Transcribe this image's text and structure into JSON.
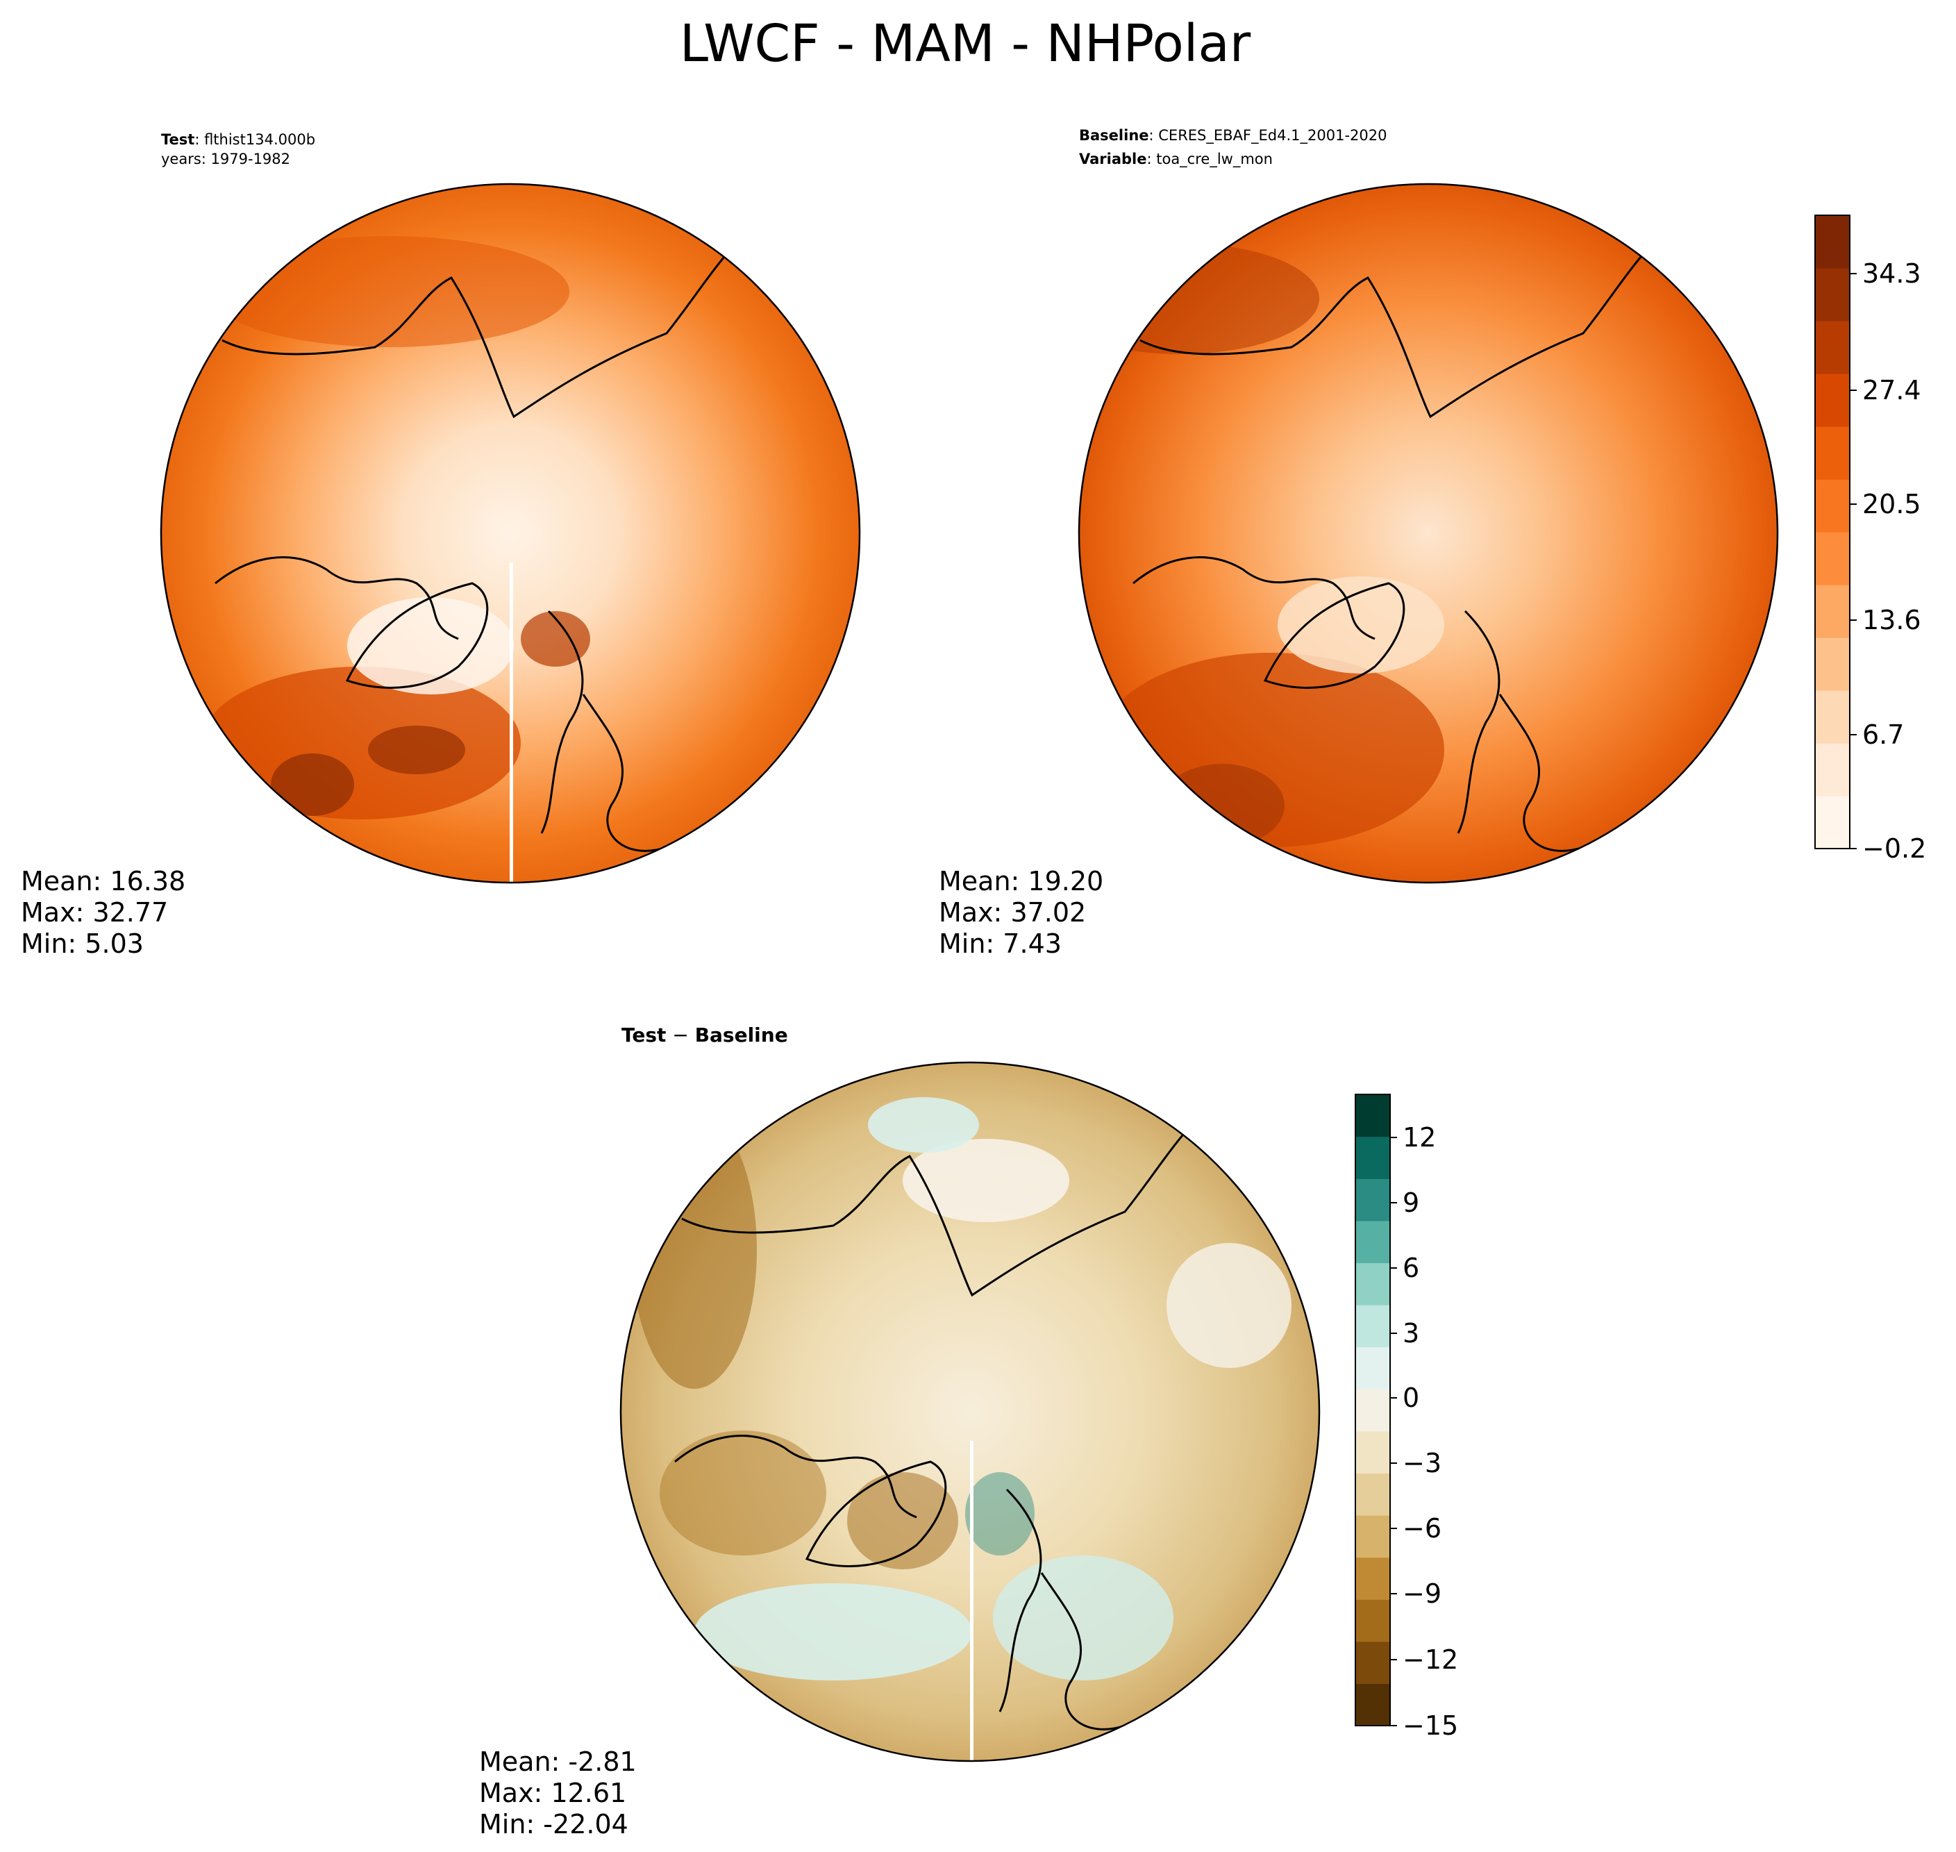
{
  "figure": {
    "title": "LWCF - MAM - NHPolar"
  },
  "panels": {
    "test": {
      "header_line1_bold": "Test",
      "header_line1_rest": ": flthist134.000b",
      "header_line2": "years: 1979-1982",
      "mean": "Mean: 16.38",
      "max": "Max: 32.77",
      "min": "Min:  5.03"
    },
    "baseline": {
      "header_line1_bold": "Baseline",
      "header_line1_rest": ": CERES_EBAF_Ed4.1_2001-2020",
      "header_line2_bold": "Variable",
      "header_line2_rest": ": toa_cre_lw_mon",
      "mean": "Mean: 19.20",
      "max": "Max: 37.02",
      "min": "Min:  7.43"
    },
    "diff": {
      "title_left": "Test",
      "title_sep": " − ",
      "title_right": "Baseline",
      "mean": "Mean: -2.81",
      "max": "Max: 12.61",
      "min": "Min: -22.04"
    }
  },
  "colorbars": {
    "main": {
      "ticks": [
        "34.3",
        "27.4",
        "20.5",
        "13.6",
        "6.7",
        "−0.2"
      ],
      "colors": [
        "#fff5eb",
        "#feead6",
        "#fdd9b5",
        "#fdc28c",
        "#fda863",
        "#fd8d3c",
        "#f87620",
        "#ec5f0b",
        "#d94801",
        "#b73c02",
        "#973003",
        "#7f2704"
      ]
    },
    "diff": {
      "ticks": [
        "12",
        "9",
        "6",
        "3",
        "0",
        "−3",
        "−6",
        "−9",
        "−12",
        "−15"
      ],
      "colors": [
        "#543005",
        "#7c4a0a",
        "#a36c1b",
        "#c08a35",
        "#d6b26a",
        "#e5ce9a",
        "#f1e4c4",
        "#f5f0e4",
        "#e3f2ef",
        "#bfe6df",
        "#8fd1c4",
        "#56b0a3",
        "#2a8c82",
        "#0b6a60",
        "#003c30"
      ]
    }
  }
}
